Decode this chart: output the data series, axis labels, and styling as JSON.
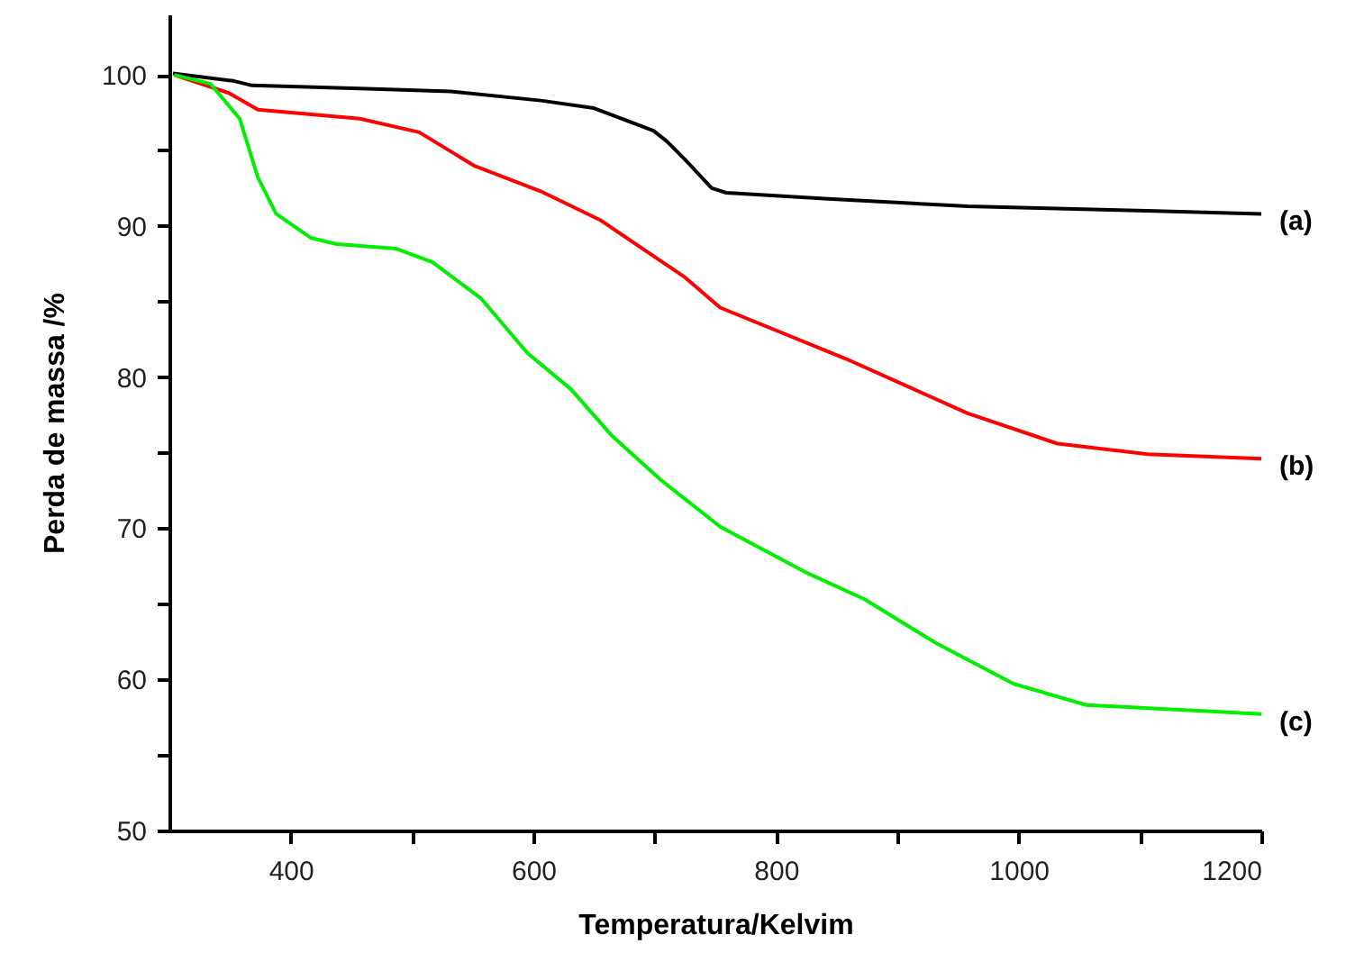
{
  "chart_data": {
    "type": "line",
    "xlabel": "Temperatura/Kelvim",
    "ylabel": "Perda de massa /%",
    "xlim": [
      300,
      1200
    ],
    "ylim": [
      50,
      104
    ],
    "xticks": [
      400,
      {
        "value": 500,
        "label": null
      },
      600,
      {
        "value": 700,
        "label": null
      },
      800,
      {
        "value": 900,
        "label": null
      },
      1000,
      {
        "value": 1100,
        "label": null
      },
      1200
    ],
    "yticks": [
      50,
      {
        "value": 55,
        "label": null
      },
      60,
      {
        "value": 65,
        "label": null
      },
      70,
      {
        "value": 75,
        "label": null
      },
      80,
      {
        "value": 85,
        "label": null
      },
      90,
      {
        "value": 95,
        "label": null
      },
      100
    ],
    "grid": false,
    "marker": "none",
    "line_style": "solid",
    "series": [
      {
        "name": "(a)",
        "color": "#000000",
        "x": [
          303,
          353,
          368,
          457,
          532,
          606,
          650,
          699,
          710,
          725,
          747,
          759,
          843,
          958,
          1106,
          1200
        ],
        "values": [
          100.1,
          99.6,
          99.3,
          99.1,
          98.9,
          98.3,
          97.8,
          96.3,
          95.6,
          94.4,
          92.5,
          92.2,
          91.8,
          91.3,
          91.0,
          90.8
        ]
      },
      {
        "name": "(b)",
        "color": "#ff0000",
        "x": [
          304,
          349,
          373,
          457,
          506,
          551,
          606,
          655,
          725,
          754,
          858,
          958,
          1032,
          1106,
          1200
        ],
        "values": [
          100,
          98.8,
          97.7,
          97.1,
          96.2,
          94.0,
          92.3,
          90.4,
          86.6,
          84.6,
          81.2,
          77.6,
          75.6,
          74.9,
          74.6
        ]
      },
      {
        "name": "(c)",
        "color": "#00ee00",
        "x": [
          304,
          334,
          358,
          373,
          388,
          417,
          438,
          487,
          517,
          557,
          595,
          631,
          665,
          705,
          754,
          824,
          873,
          932,
          996,
          1056,
          1155,
          1200
        ],
        "values": [
          100,
          99.4,
          97.1,
          93.2,
          90.8,
          89.2,
          88.8,
          88.5,
          87.6,
          85.2,
          81.6,
          79.2,
          76.1,
          73.2,
          70.1,
          67.1,
          65.3,
          62.4,
          59.7,
          58.3,
          57.9,
          57.7
        ]
      }
    ]
  }
}
